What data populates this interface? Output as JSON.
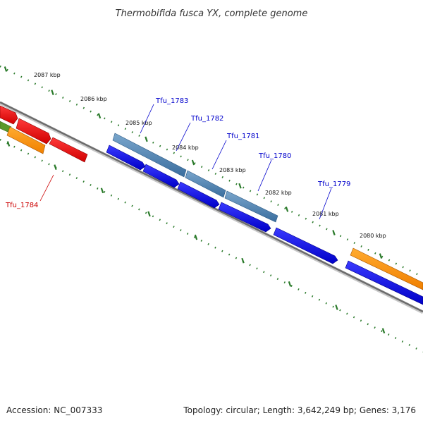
{
  "title": "Thermobifida fusca YX, complete genome",
  "footer": {
    "accession": "Accession: NC_007333",
    "stats": "Topology: circular; Length: 3,642,249 bp; Genes: 3,176"
  },
  "colors": {
    "blue_cds": "#0000ee",
    "steelblue_gene": "#4a7fb0",
    "red_gene": "#ee0000",
    "orange_gene": "#ff9410",
    "backbone": "#808080",
    "tick": "#2a7a2a",
    "label_blue": "#0000cc",
    "label_red": "#cc0000"
  },
  "kbp_labels": [
    "2087 kbp",
    "2086 kbp",
    "2085 kbp",
    "2084 kbp",
    "2083 kbp",
    "2082 kbp",
    "2081 kbp",
    "2080 kbp"
  ],
  "gene_labels": [
    {
      "text": "Tfu_1783",
      "color": "label_blue"
    },
    {
      "text": "Tfu_1782",
      "color": "label_blue"
    },
    {
      "text": "Tfu_1781",
      "color": "label_blue"
    },
    {
      "text": "Tfu_1780",
      "color": "label_blue"
    },
    {
      "text": "Tfu_1779",
      "color": "label_blue"
    },
    {
      "text": "Tfu_1784",
      "color": "label_red"
    }
  ]
}
